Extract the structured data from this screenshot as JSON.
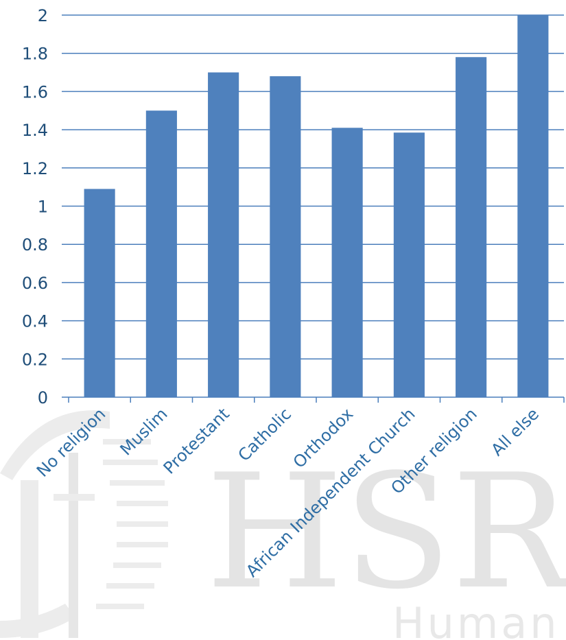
{
  "chart_data": {
    "type": "bar",
    "categories": [
      "No religion",
      "Muslim",
      "Protestant",
      "Catholic",
      "Orthodox",
      "African Independent Church",
      "Other religion",
      "All else"
    ],
    "values": [
      1.09,
      1.5,
      1.7,
      1.68,
      1.41,
      1.385,
      1.78,
      2.0
    ],
    "yticks": [
      "0",
      "0.2",
      "0.4",
      "0.6",
      "0.8",
      "1",
      "1.2",
      "1.4",
      "1.6",
      "1.8",
      "2"
    ],
    "ylim": [
      0,
      2
    ],
    "grid": true,
    "legend": "none",
    "bar_color": "#4f81bd",
    "axis_color": "#4a7ebb",
    "label_color": "#2e6da4"
  },
  "watermark": {
    "logo": "HSRC",
    "subtitle": "Human Science"
  }
}
